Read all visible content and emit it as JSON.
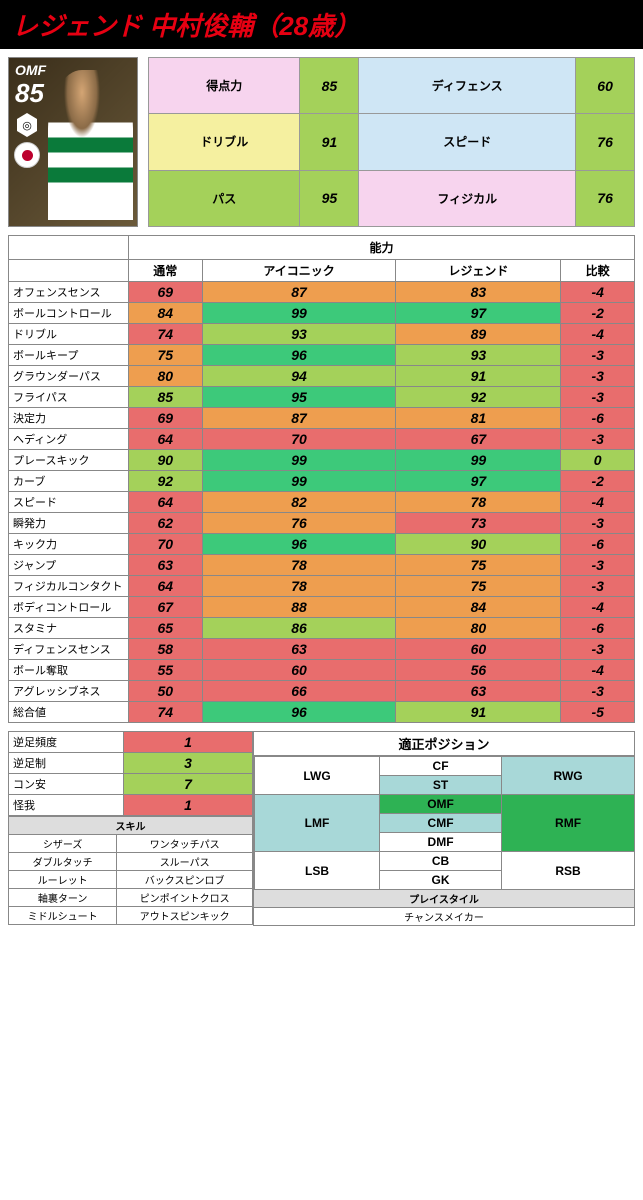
{
  "header": {
    "title": "レジェンド 中村俊輔（28歳）"
  },
  "card": {
    "position": "OMF",
    "rating": "85"
  },
  "summaryColors": {
    "lime": "#a4d15a",
    "limeYellow": "#f5f0a0",
    "lightBlue": "#cfe6f5",
    "pink": "#f7d4ee"
  },
  "summary": [
    [
      {
        "l": "得点力",
        "c": "#f7d4ee"
      },
      {
        "v": "85",
        "c": "#a4d15a"
      },
      {
        "l": "ディフェンス",
        "c": "#cfe6f5"
      },
      {
        "v": "60",
        "c": "#a4d15a"
      }
    ],
    [
      {
        "l": "ドリブル",
        "c": "#f5f0a0"
      },
      {
        "v": "91",
        "c": "#a4d15a"
      },
      {
        "l": "スピード",
        "c": "#cfe6f5"
      },
      {
        "v": "76",
        "c": "#a4d15a"
      }
    ],
    [
      {
        "l": "パス",
        "c": "#a4d15a"
      },
      {
        "v": "95",
        "c": "#a4d15a"
      },
      {
        "l": "フィジカル",
        "c": "#f7d4ee"
      },
      {
        "v": "76",
        "c": "#a4d15a"
      }
    ]
  ],
  "colors": {
    "r": "#e86d6d",
    "o": "#ee9e4f",
    "l": "#a4d15a",
    "g": "#3dc97a"
  },
  "mainHeaders": {
    "ability": "能力",
    "cols": [
      "通常",
      "アイコニック",
      "レジェンド",
      "比較"
    ]
  },
  "mainRows": [
    {
      "label": "オフェンスセンス",
      "v": [
        "69",
        "87",
        "83",
        "-4"
      ],
      "c": [
        "r",
        "o",
        "o",
        "r"
      ]
    },
    {
      "label": "ボールコントロール",
      "v": [
        "84",
        "99",
        "97",
        "-2"
      ],
      "c": [
        "o",
        "g",
        "g",
        "r"
      ]
    },
    {
      "label": "ドリブル",
      "v": [
        "74",
        "93",
        "89",
        "-4"
      ],
      "c": [
        "r",
        "l",
        "o",
        "r"
      ]
    },
    {
      "label": "ボールキープ",
      "v": [
        "75",
        "96",
        "93",
        "-3"
      ],
      "c": [
        "o",
        "g",
        "l",
        "r"
      ]
    },
    {
      "label": "グラウンダーパス",
      "v": [
        "80",
        "94",
        "91",
        "-3"
      ],
      "c": [
        "o",
        "l",
        "l",
        "r"
      ]
    },
    {
      "label": "フライパス",
      "v": [
        "85",
        "95",
        "92",
        "-3"
      ],
      "c": [
        "l",
        "g",
        "l",
        "r"
      ]
    },
    {
      "label": "決定力",
      "v": [
        "69",
        "87",
        "81",
        "-6"
      ],
      "c": [
        "r",
        "o",
        "o",
        "r"
      ]
    },
    {
      "label": "ヘディング",
      "v": [
        "64",
        "70",
        "67",
        "-3"
      ],
      "c": [
        "r",
        "r",
        "r",
        "r"
      ]
    },
    {
      "label": "プレースキック",
      "v": [
        "90",
        "99",
        "99",
        "0"
      ],
      "c": [
        "l",
        "g",
        "g",
        "l"
      ]
    },
    {
      "label": "カーブ",
      "v": [
        "92",
        "99",
        "97",
        "-2"
      ],
      "c": [
        "l",
        "g",
        "g",
        "r"
      ]
    },
    {
      "label": "スピード",
      "v": [
        "64",
        "82",
        "78",
        "-4"
      ],
      "c": [
        "r",
        "o",
        "o",
        "r"
      ]
    },
    {
      "label": "瞬発力",
      "v": [
        "62",
        "76",
        "73",
        "-3"
      ],
      "c": [
        "r",
        "o",
        "r",
        "r"
      ]
    },
    {
      "label": "キック力",
      "v": [
        "70",
        "96",
        "90",
        "-6"
      ],
      "c": [
        "r",
        "g",
        "l",
        "r"
      ]
    },
    {
      "label": "ジャンプ",
      "v": [
        "63",
        "78",
        "75",
        "-3"
      ],
      "c": [
        "r",
        "o",
        "o",
        "r"
      ]
    },
    {
      "label": "フィジカルコンタクト",
      "v": [
        "64",
        "78",
        "75",
        "-3"
      ],
      "c": [
        "r",
        "o",
        "o",
        "r"
      ]
    },
    {
      "label": "ボディコントロール",
      "v": [
        "67",
        "88",
        "84",
        "-4"
      ],
      "c": [
        "r",
        "o",
        "o",
        "r"
      ]
    },
    {
      "label": "スタミナ",
      "v": [
        "65",
        "86",
        "80",
        "-6"
      ],
      "c": [
        "r",
        "l",
        "o",
        "r"
      ]
    },
    {
      "label": "ディフェンスセンス",
      "v": [
        "58",
        "63",
        "60",
        "-3"
      ],
      "c": [
        "r",
        "r",
        "r",
        "r"
      ]
    },
    {
      "label": "ボール奪取",
      "v": [
        "55",
        "60",
        "56",
        "-4"
      ],
      "c": [
        "r",
        "r",
        "r",
        "r"
      ]
    },
    {
      "label": "アグレッシブネス",
      "v": [
        "50",
        "66",
        "63",
        "-3"
      ],
      "c": [
        "r",
        "r",
        "r",
        "r"
      ]
    },
    {
      "label": "総合値",
      "v": [
        "74",
        "96",
        "91",
        "-5"
      ],
      "c": [
        "r",
        "g",
        "l",
        "r"
      ]
    }
  ],
  "stats": [
    {
      "l": "逆足頻度",
      "v": "1",
      "c": "r"
    },
    {
      "l": "逆足制",
      "v": "3",
      "c": "l"
    },
    {
      "l": "コン安",
      "v": "7",
      "c": "l"
    },
    {
      "l": "怪我",
      "v": "1",
      "c": "r"
    }
  ],
  "skillHeader": "スキル",
  "skills": [
    [
      "シザーズ",
      "ワンタッチパス"
    ],
    [
      "ダブルタッチ",
      "スルーパス"
    ],
    [
      "ルーレット",
      "バックスピンロブ"
    ],
    [
      "軸裏ターン",
      "ピンポイントクロス"
    ],
    [
      "ミドルシュート",
      "アウトスピンキック"
    ]
  ],
  "posHeader": "適正ポジション",
  "positions": {
    "cells": [
      {
        "t": "LWG",
        "c": "#fff",
        "rs": 2
      },
      {
        "t": "CF",
        "c": "#fff"
      },
      {
        "t": "RWG",
        "c": "#a8d8d8",
        "rs": 2
      },
      {
        "t": "ST",
        "c": "#a8d8d8"
      },
      {
        "t": "LMF",
        "c": "#a8d8d8",
        "rs": 3
      },
      {
        "t": "OMF",
        "c": "#2eb254"
      },
      {
        "t": "RMF",
        "c": "#2eb254",
        "rs": 3
      },
      {
        "t": "CMF",
        "c": "#a8d8d8"
      },
      {
        "t": "DMF",
        "c": "#fff"
      },
      {
        "t": "LSB",
        "c": "#fff",
        "rs": 2
      },
      {
        "t": "CB",
        "c": "#fff"
      },
      {
        "t": "RSB",
        "c": "#fff",
        "rs": 2
      },
      {
        "t": "GK",
        "c": "#fff"
      }
    ]
  },
  "playStyleHeader": "プレイスタイル",
  "playStyle": "チャンスメイカー"
}
